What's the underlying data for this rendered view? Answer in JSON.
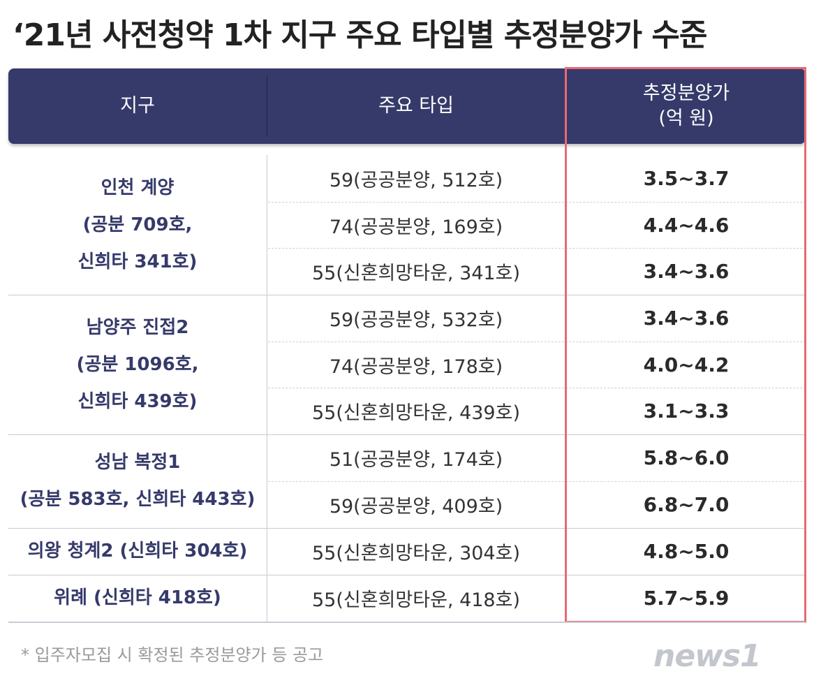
{
  "title": "‘21년 사전청약 1차 지구 주요 타입별 추정분양가 수준",
  "header": {
    "col1": "지구",
    "col2": "주요 타입",
    "col3_line1": "추정분양가",
    "col3_line2": "(억 원)"
  },
  "groups": [
    {
      "lines": [
        "인천 계양",
        "(공분 709호,",
        "신희타 341호)"
      ]
    },
    {
      "lines": [
        "남양주 진접2",
        "(공분 1096호,",
        "신희타 439호)"
      ]
    },
    {
      "lines": [
        "성남 복정1",
        "(공분 583호, 신희타 443호)"
      ]
    },
    {
      "lines": [
        "의왕 청계2 (신희타 304호)"
      ]
    },
    {
      "lines": [
        "위례 (신희타 418호)"
      ]
    }
  ],
  "rows": [
    {
      "type": "59(공공분양, 512호)",
      "price": "3.5~3.7"
    },
    {
      "type": "74(공공분양, 169호)",
      "price": "4.4~4.6"
    },
    {
      "type": "55(신혼희망타운, 341호)",
      "price": "3.4~3.6"
    },
    {
      "type": "59(공공분양, 532호)",
      "price": "3.4~3.6"
    },
    {
      "type": "74(공공분양, 178호)",
      "price": "4.0~4.2"
    },
    {
      "type": "55(신혼희망타운, 439호)",
      "price": "3.1~3.3"
    },
    {
      "type": "51(공공분양, 174호)",
      "price": "5.8~6.0"
    },
    {
      "type": "59(공공분양, 409호)",
      "price": "6.8~7.0"
    },
    {
      "type": "55(신혼희망타운, 304호)",
      "price": "4.8~5.0"
    },
    {
      "type": "55(신혼희망타운, 418호)",
      "price": "5.7~5.9"
    }
  ],
  "footnote": "* 입주자모집 시 확정된 추정분양가 등 공고",
  "logo": "news1",
  "colors": {
    "header_bg": "#353a6a",
    "highlight": "#e86a70",
    "district_text": "#353a6a"
  }
}
